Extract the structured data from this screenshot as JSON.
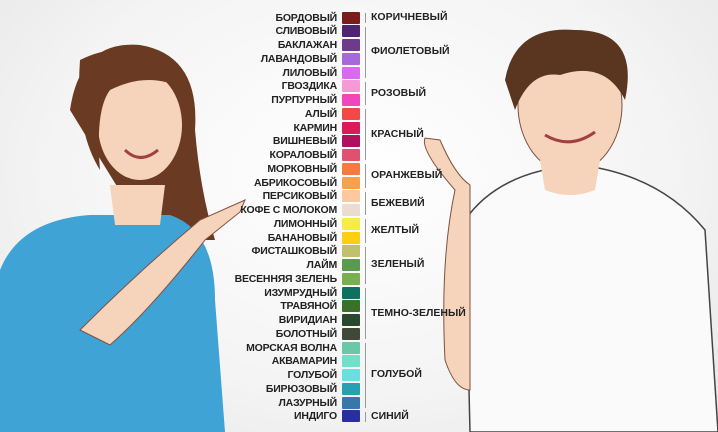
{
  "shades": [
    {
      "name": "БОРДОВЫЙ",
      "color": "#7a1c1c"
    },
    {
      "name": "СЛИВОВЫЙ",
      "color": "#4e2470"
    },
    {
      "name": "БАКЛАЖАН",
      "color": "#6e3a8c"
    },
    {
      "name": "ЛАВАНДОВЫЙ",
      "color": "#a66ad8"
    },
    {
      "name": "ЛИЛОВЫЙ",
      "color": "#d96af0"
    },
    {
      "name": "ГВОЗДИКА",
      "color": "#f59ad6"
    },
    {
      "name": "ПУРПУРНЫЙ",
      "color": "#f048b8"
    },
    {
      "name": "АЛЫЙ",
      "color": "#f24848"
    },
    {
      "name": "КАРМИН",
      "color": "#dc1a5a"
    },
    {
      "name": "ВИШНЕВЫЙ",
      "color": "#b01060"
    },
    {
      "name": "КОРАЛОВЫЙ",
      "color": "#e05070"
    },
    {
      "name": "МОРКОВНЫЙ",
      "color": "#f57a40"
    },
    {
      "name": "АБРИКОСОВЫЙ",
      "color": "#f7a050"
    },
    {
      "name": "ПЕРСИКОВЫЙ",
      "color": "#fcc8a0"
    },
    {
      "name": "КОФЕ С МОЛОКОМ",
      "color": "#ecdcd0"
    },
    {
      "name": "ЛИМОННЫЙ",
      "color": "#f5ec48"
    },
    {
      "name": "БАНАНОВЫЙ",
      "color": "#fcd010"
    },
    {
      "name": "ФИСТАШКОВЫЙ",
      "color": "#c0c070"
    },
    {
      "name": "ЛАЙМ",
      "color": "#5a9a50"
    },
    {
      "name": "ВЕСЕННЯЯ ЗЕЛЕНЬ",
      "color": "#78b050"
    },
    {
      "name": "ИЗУМРУДНЫЙ",
      "color": "#107060"
    },
    {
      "name": "ТРАВЯНОЙ",
      "color": "#3a7028"
    },
    {
      "name": "ВИРИДИАН",
      "color": "#284830"
    },
    {
      "name": "БОЛОТНЫЙ",
      "color": "#404838"
    },
    {
      "name": "МОРСКАЯ ВОЛНА",
      "color": "#68c8a8"
    },
    {
      "name": "АКВАМАРИН",
      "color": "#70e0c8"
    },
    {
      "name": "ГОЛУБОЙ",
      "color": "#68e0e0"
    },
    {
      "name": "БИРЮЗОВЫЙ",
      "color": "#28a0b0"
    },
    {
      "name": "ЛАЗУРНЫЙ",
      "color": "#3878a8"
    },
    {
      "name": "ИНДИГО",
      "color": "#2830a0"
    }
  ],
  "groups": [
    {
      "name": "КОРИЧНЕВЫЙ",
      "from": 1,
      "to": 1
    },
    {
      "name": "ФИОЛЕТОВЫЙ",
      "from": 2,
      "to": 5
    },
    {
      "name": "РОЗОВЫЙ",
      "from": 6,
      "to": 7
    },
    {
      "name": "КРАСНЫЙ",
      "from": 8,
      "to": 11
    },
    {
      "name": "ОРАНЖЕВЫЙ",
      "from": 12,
      "to": 13
    },
    {
      "name": "БЕЖЕВИЙ",
      "from": 14,
      "to": 15
    },
    {
      "name": "ЖЕЛТЫЙ",
      "from": 16,
      "to": 17
    },
    {
      "name": "ЗЕЛЕНЫЙ",
      "from": 18,
      "to": 20
    },
    {
      "name": "ТЕМНО-ЗЕЛЕНЫЙ",
      "from": 21,
      "to": 24
    },
    {
      "name": "ГОЛУБОЙ",
      "from": 25,
      "to": 29
    },
    {
      "name": "СИНИЙ",
      "from": 30,
      "to": 30
    }
  ],
  "colors": {
    "woman_shirt": "#3fa3d6",
    "man_shirt": "#fafafa",
    "skin": "#f6d3bb",
    "woman_hair": "#6a3a22",
    "man_hair": "#5a3520"
  }
}
